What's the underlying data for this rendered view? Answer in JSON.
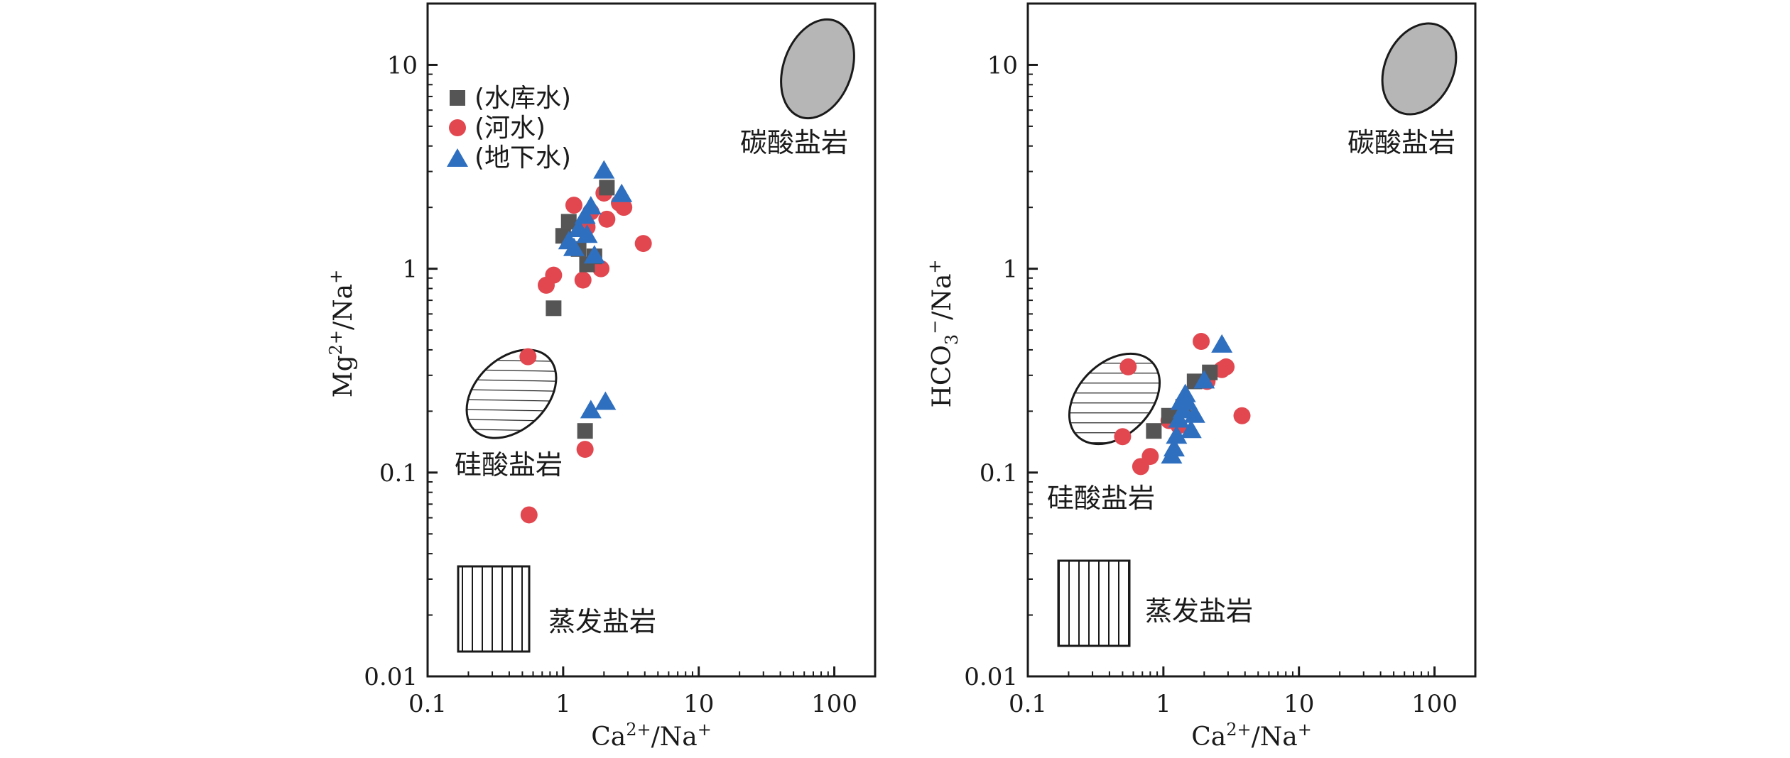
{
  "chart_data": [
    {
      "type": "scatter",
      "title": "",
      "xscale": "log",
      "yscale": "log",
      "xlim": [
        0.1,
        200
      ],
      "ylim": [
        0.01,
        20
      ],
      "xticks": [
        "0.1",
        "1",
        "10",
        "100"
      ],
      "yticks": [
        "0.01",
        "0.1",
        "1",
        "10"
      ],
      "xlabel": {
        "base": "Ca",
        "sup1": "2+",
        "mid": "/Na",
        "sup2": "+"
      },
      "ylabel": {
        "base": "Mg",
        "sup1": "2+",
        "mid": "/Na",
        "sup2": "+"
      },
      "legend": {
        "position": "top-left"
      },
      "regions": [
        {
          "name": "碳酸盐岩",
          "style": "gray-filled-ellipse"
        },
        {
          "name": "硅酸盐岩",
          "style": "hatched-ellipse"
        },
        {
          "name": "蒸发盐岩",
          "style": "vertical-hatched-rectangle"
        }
      ],
      "series": [
        {
          "name": "(水库水)",
          "marker": "square",
          "color": "#555555",
          "points": [
            [
              1.0,
              1.45
            ],
            [
              1.1,
              1.7
            ],
            [
              1.3,
              1.25
            ],
            [
              1.5,
              1.05
            ],
            [
              1.7,
              1.15
            ],
            [
              2.1,
              2.5
            ],
            [
              0.85,
              0.64
            ],
            [
              1.45,
              0.16
            ]
          ]
        },
        {
          "name": "(河水)",
          "marker": "circle",
          "color": "#e2474f",
          "points": [
            [
              0.55,
              0.37
            ],
            [
              0.56,
              0.062
            ],
            [
              0.75,
              0.83
            ],
            [
              0.85,
              0.93
            ],
            [
              1.2,
              2.05
            ],
            [
              1.4,
              0.88
            ],
            [
              1.5,
              1.6
            ],
            [
              1.6,
              1.9
            ],
            [
              1.9,
              1.0
            ],
            [
              2.1,
              1.75
            ],
            [
              2.0,
              2.35
            ],
            [
              2.6,
              2.1
            ],
            [
              2.8,
              2.0
            ],
            [
              3.9,
              1.33
            ],
            [
              1.45,
              0.13
            ]
          ]
        },
        {
          "name": "(地下水)",
          "marker": "triangle",
          "color": "#2e6fc0",
          "points": [
            [
              1.1,
              1.35
            ],
            [
              1.2,
              1.25
            ],
            [
              1.3,
              1.55
            ],
            [
              1.45,
              1.8
            ],
            [
              1.6,
              2.0
            ],
            [
              1.5,
              1.45
            ],
            [
              1.7,
              1.15
            ],
            [
              2.0,
              3.0
            ],
            [
              2.7,
              2.3
            ],
            [
              1.6,
              0.2
            ],
            [
              2.05,
              0.22
            ]
          ]
        }
      ]
    },
    {
      "type": "scatter",
      "title": "",
      "xscale": "log",
      "yscale": "log",
      "xlim": [
        0.1,
        200
      ],
      "ylim": [
        0.01,
        20
      ],
      "xticks": [
        "0.1",
        "1",
        "10",
        "100"
      ],
      "yticks": [
        "0.01",
        "0.1",
        "1",
        "10"
      ],
      "xlabel": {
        "base": "Ca",
        "sup1": "2+",
        "mid": "/Na",
        "sup2": "+"
      },
      "ylabel": {
        "base": "HCO",
        "sub": "3",
        "sup1": "−",
        "mid": "/Na",
        "sup2": "+"
      },
      "regions": [
        {
          "name": "碳酸盐岩",
          "style": "gray-filled-ellipse"
        },
        {
          "name": "硅酸盐岩",
          "style": "hatched-ellipse"
        },
        {
          "name": "蒸发盐岩",
          "style": "vertical-hatched-rectangle"
        }
      ],
      "series": [
        {
          "name": "(水库水)",
          "marker": "square",
          "color": "#555555",
          "points": [
            [
              0.85,
              0.16
            ],
            [
              1.1,
              0.19
            ],
            [
              1.4,
              0.21
            ],
            [
              1.7,
              0.28
            ],
            [
              2.2,
              0.31
            ]
          ]
        },
        {
          "name": "(河水)",
          "marker": "circle",
          "color": "#e2474f",
          "points": [
            [
              0.55,
              0.33
            ],
            [
              0.5,
              0.15
            ],
            [
              0.68,
              0.107
            ],
            [
              0.8,
              0.12
            ],
            [
              1.1,
              0.18
            ],
            [
              1.9,
              0.44
            ],
            [
              2.1,
              0.28
            ],
            [
              2.7,
              0.32
            ],
            [
              2.9,
              0.33
            ],
            [
              3.8,
              0.19
            ],
            [
              1.3,
              0.17
            ]
          ]
        },
        {
          "name": "(地下水)",
          "marker": "triangle",
          "color": "#2e6fc0",
          "points": [
            [
              1.15,
              0.12
            ],
            [
              1.2,
              0.13
            ],
            [
              1.25,
              0.15
            ],
            [
              1.3,
              0.18
            ],
            [
              1.35,
              0.22
            ],
            [
              1.4,
              0.2
            ],
            [
              1.5,
              0.22
            ],
            [
              1.6,
              0.16
            ],
            [
              1.7,
              0.19
            ],
            [
              2.0,
              0.28
            ],
            [
              2.7,
              0.42
            ],
            [
              1.45,
              0.24
            ]
          ]
        }
      ]
    }
  ]
}
